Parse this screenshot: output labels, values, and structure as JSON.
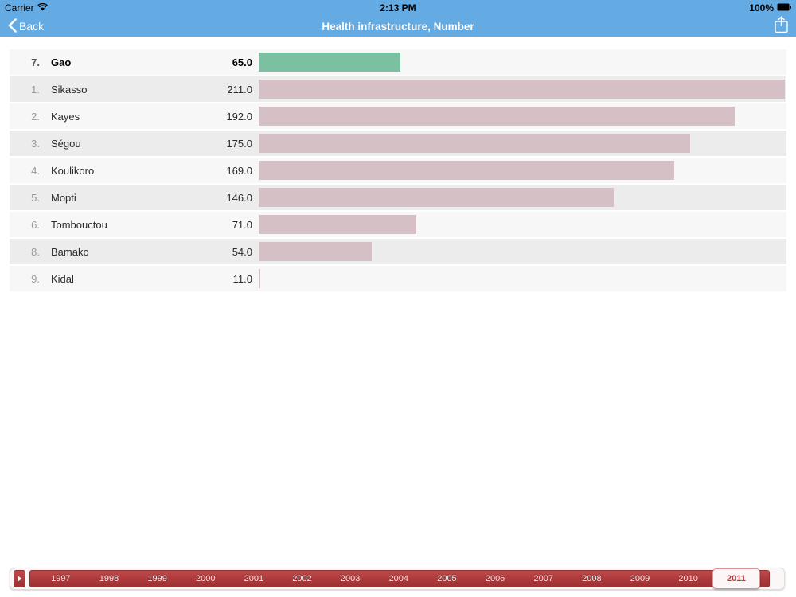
{
  "status_bar": {
    "carrier": "Carrier",
    "time": "2:13 PM",
    "battery": "100%"
  },
  "nav": {
    "back_label": "Back",
    "title": "Health infrastructure, Number"
  },
  "chart_data": {
    "type": "bar",
    "orientation": "horizontal",
    "title": "Health infrastructure, Number",
    "selected_year": "2011",
    "value_min": 11.0,
    "value_max": 211.0,
    "bars": [
      {
        "rank": "7.",
        "label": "Gao",
        "value": 65.0,
        "value_label": "65.0",
        "highlighted": true
      },
      {
        "rank": "1.",
        "label": "Sikasso",
        "value": 211.0,
        "value_label": "211.0",
        "highlighted": false
      },
      {
        "rank": "2.",
        "label": "Kayes",
        "value": 192.0,
        "value_label": "192.0",
        "highlighted": false
      },
      {
        "rank": "3.",
        "label": "Ségou",
        "value": 175.0,
        "value_label": "175.0",
        "highlighted": false
      },
      {
        "rank": "4.",
        "label": "Koulikoro",
        "value": 169.0,
        "value_label": "169.0",
        "highlighted": false
      },
      {
        "rank": "5.",
        "label": "Mopti",
        "value": 146.0,
        "value_label": "146.0",
        "highlighted": false
      },
      {
        "rank": "6.",
        "label": "Tombouctou",
        "value": 71.0,
        "value_label": "71.0",
        "highlighted": false
      },
      {
        "rank": "8.",
        "label": "Bamako",
        "value": 54.0,
        "value_label": "54.0",
        "highlighted": false
      },
      {
        "rank": "9.",
        "label": "Kidal",
        "value": 11.0,
        "value_label": "11.0",
        "highlighted": false
      }
    ],
    "colors": {
      "highlight_bar": "#7cc0a2",
      "normal_bar": "#d5c0c5",
      "nav_blue": "#64aae3",
      "timeline_red": "#b03a3a"
    }
  },
  "timeline": {
    "years": [
      "1997",
      "1998",
      "1999",
      "2000",
      "2001",
      "2002",
      "2003",
      "2004",
      "2005",
      "2006",
      "2007",
      "2008",
      "2009",
      "2010",
      "2011"
    ],
    "selected_year": "2011"
  }
}
